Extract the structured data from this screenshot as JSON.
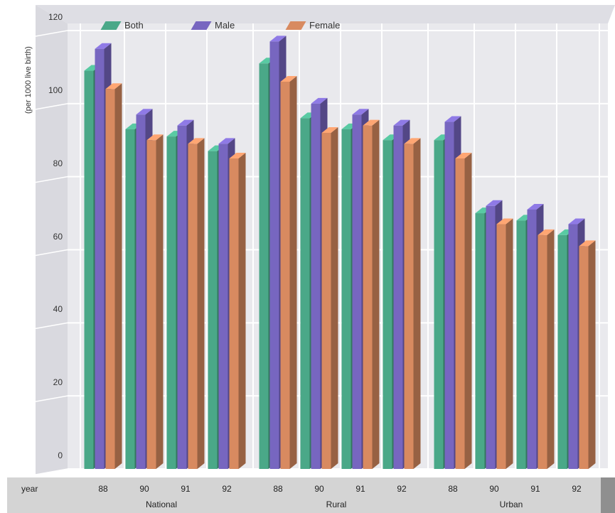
{
  "chart_data": {
    "type": "bar",
    "ylabel": "(per 1000 live birth)",
    "ylim": [
      0,
      120
    ],
    "yticks": [
      "0",
      "20",
      "40",
      "60",
      "80",
      "100",
      "120"
    ],
    "x_axis_name": "year",
    "groups": [
      {
        "name": "National",
        "years": [
          "88",
          "90",
          "91",
          "92"
        ]
      },
      {
        "name": "Rural",
        "years": [
          "88",
          "90",
          "91",
          "92"
        ]
      },
      {
        "name": "Urban",
        "years": [
          "88",
          "90",
          "91",
          "92"
        ]
      }
    ],
    "series": [
      {
        "name": "Both",
        "values": [
          109,
          93,
          91,
          87,
          111,
          96,
          93,
          90,
          90,
          70,
          68,
          64
        ]
      },
      {
        "name": "Male",
        "values": [
          115,
          97,
          94,
          89,
          117,
          100,
          97,
          94,
          95,
          72,
          71,
          67
        ]
      },
      {
        "name": "Female",
        "values": [
          104,
          90,
          89,
          85,
          106,
          92,
          94,
          89,
          85,
          67,
          64,
          61
        ]
      }
    ],
    "colors": {
      "Both": "#4aa888",
      "Male": "#7766c0",
      "Female": "#d88a60"
    },
    "grid": true,
    "legend_position": "top"
  }
}
